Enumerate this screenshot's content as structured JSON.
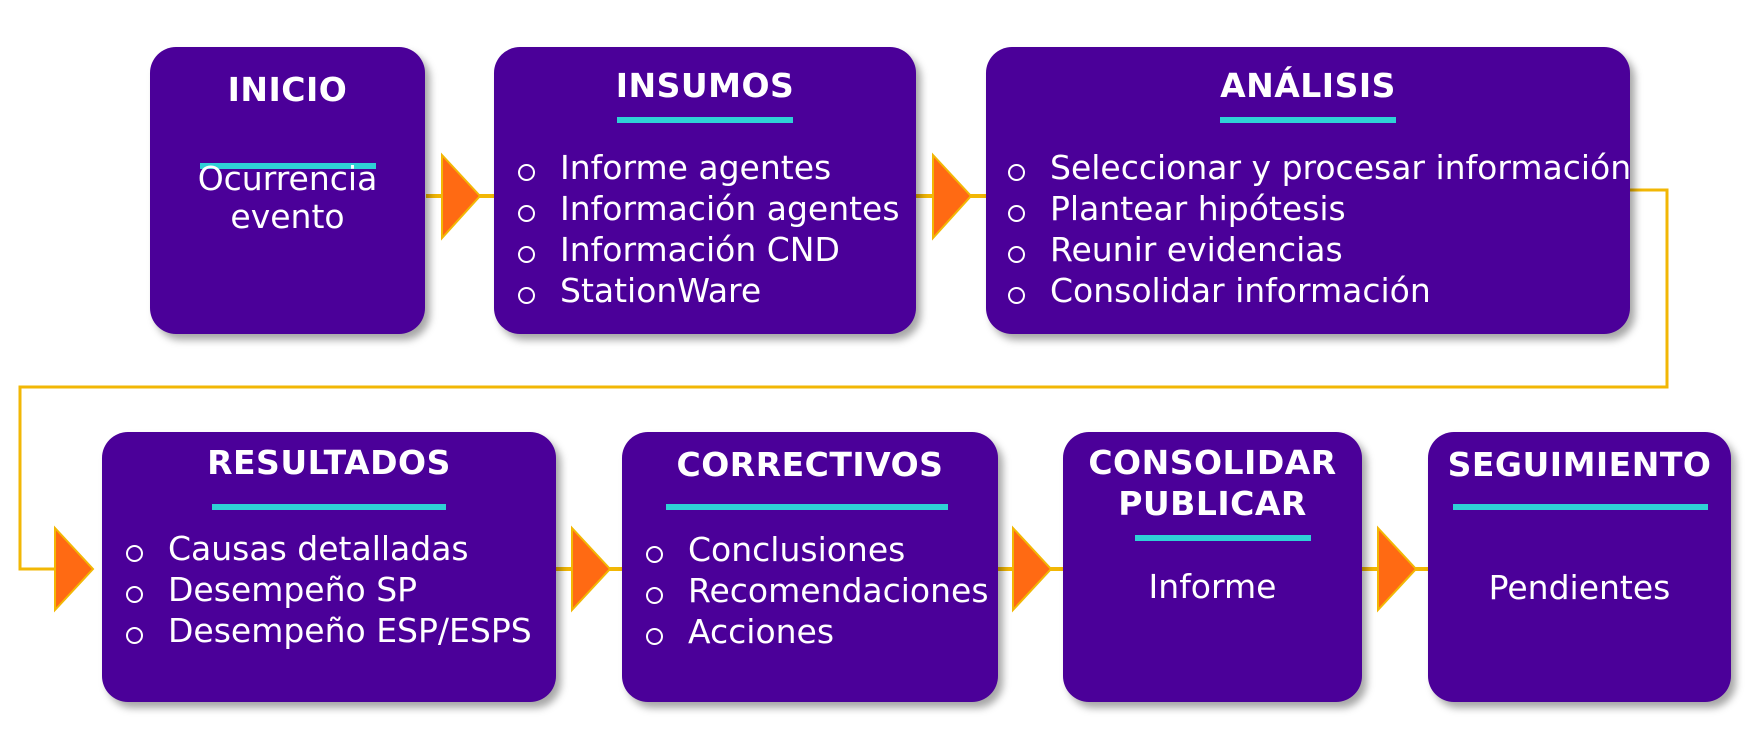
{
  "colors": {
    "card_fill": "#4b0099",
    "title_underline": "#2fd0d6",
    "connector_line": "#f2b705",
    "arrow": "#ff6a13"
  },
  "steps": {
    "inicio": {
      "title": "INICIO",
      "text_line1": "Ocurrencia",
      "text_line2": "evento"
    },
    "insumos": {
      "title": "INSUMOS",
      "items": [
        "Informe agentes",
        "Información agentes",
        "Información CND",
        "StationWare"
      ]
    },
    "analisis": {
      "title": "ANÁLISIS",
      "items": [
        "Seleccionar y procesar información",
        "Plantear hipótesis",
        "Reunir evidencias",
        "Consolidar información"
      ]
    },
    "resultados": {
      "title": "RESULTADOS",
      "items": [
        "Causas detalladas",
        "Desempeño SP",
        "Desempeño ESP/ESPS"
      ]
    },
    "correctivos": {
      "title": "CORRECTIVOS",
      "items": [
        "Conclusiones",
        "Recomendaciones",
        "Acciones"
      ]
    },
    "consolidar": {
      "title_line1": "CONSOLIDAR",
      "title_line2": "PUBLICAR",
      "text": "Informe"
    },
    "seguimiento": {
      "title": "SEGUIMIENTO",
      "text": "Pendientes"
    }
  }
}
